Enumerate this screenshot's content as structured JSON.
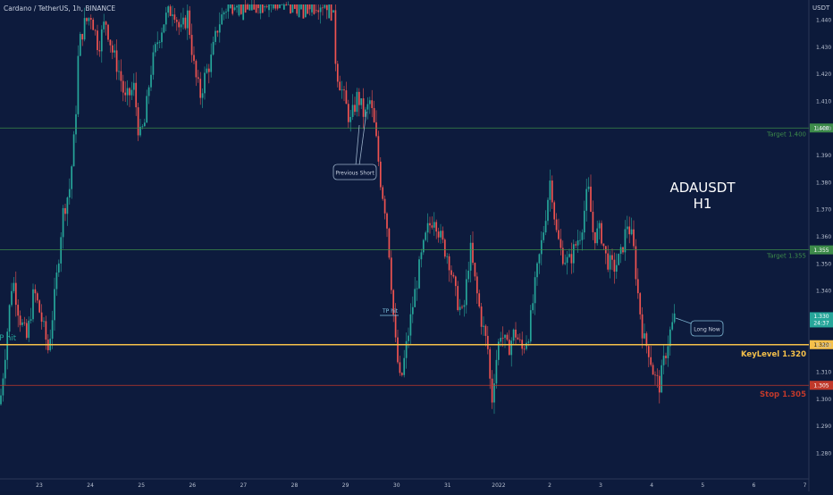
{
  "header": {
    "title": "Cardano / TetherUS, 1h, BINANCE",
    "axis_unit": "USDT"
  },
  "colors": {
    "background": "#0c1a3a",
    "up": "#26a69a",
    "down": "#ef5350",
    "target_line": "#3d8b4a",
    "key_level": "#f5c04a",
    "stop_line": "#c0392b",
    "price_badge": "#26a69a",
    "annotation": "#7fb8d4"
  },
  "chart_data": {
    "type": "candlestick",
    "title": "Cardano / TetherUS, 1h, BINANCE",
    "ylim": [
      1.272,
      1.448
    ],
    "y_ticks": [
      "1.440",
      "1.430",
      "1.420",
      "1.410",
      "1.400",
      "1.390",
      "1.380",
      "1.370",
      "1.360",
      "1.350",
      "1.340",
      "1.330",
      "1.320",
      "1.310",
      "1.300",
      "1.290",
      "1.280"
    ],
    "x_ticks": [
      "23",
      "24",
      "25",
      "26",
      "27",
      "28",
      "29",
      "30",
      "31",
      "2022",
      "2",
      "3",
      "4",
      "5",
      "6",
      "7"
    ],
    "watermark": [
      "ADAUSDT",
      "H1"
    ],
    "last_price": "1.330",
    "countdown": "24:37",
    "levels": [
      {
        "id": "target-1400",
        "label": "Target 1.400",
        "price": 1.4,
        "badge": "1.400",
        "color": "#3d8b4a"
      },
      {
        "id": "target-1355",
        "label": "Target 1.355",
        "price": 1.355,
        "badge": "1.355",
        "color": "#3d8b4a"
      },
      {
        "id": "key-level",
        "label": "KeyLevel 1.320",
        "price": 1.32,
        "badge": "1.320",
        "color": "#f5c04a"
      },
      {
        "id": "stop",
        "label": "Stop 1.305",
        "price": 1.305,
        "badge": "1.305",
        "color": "#c0392b"
      }
    ],
    "annotations": {
      "previous_short": "Previous Short",
      "long_now": "Long Now",
      "tp_hit": "TP hit",
      "tp_hit_left": "TP hit"
    },
    "price_path": [
      [
        0,
        1.298
      ],
      [
        6,
        1.318
      ],
      [
        14,
        1.345
      ],
      [
        22,
        1.33
      ],
      [
        30,
        1.322
      ],
      [
        38,
        1.34
      ],
      [
        46,
        1.33
      ],
      [
        54,
        1.318
      ],
      [
        62,
        1.34
      ],
      [
        70,
        1.368
      ],
      [
        78,
        1.378
      ],
      [
        84,
        1.4
      ],
      [
        88,
        1.43
      ],
      [
        94,
        1.438
      ],
      [
        102,
        1.442
      ],
      [
        110,
        1.43
      ],
      [
        118,
        1.44
      ],
      [
        126,
        1.428
      ],
      [
        134,
        1.42
      ],
      [
        140,
        1.41
      ],
      [
        150,
        1.415
      ],
      [
        156,
        1.396
      ],
      [
        162,
        1.402
      ],
      [
        168,
        1.42
      ],
      [
        176,
        1.432
      ],
      [
        184,
        1.44
      ],
      [
        194,
        1.445
      ],
      [
        202,
        1.435
      ],
      [
        210,
        1.442
      ],
      [
        218,
        1.42
      ],
      [
        224,
        1.412
      ],
      [
        230,
        1.42
      ],
      [
        236,
        1.425
      ],
      [
        244,
        1.438
      ],
      [
        252,
        1.444
      ],
      [
        258,
        1.446
      ],
      [
        262,
        1.448
      ],
      [
        372,
        1.446
      ],
      [
        376,
        1.422
      ],
      [
        384,
        1.412
      ],
      [
        392,
        1.402
      ],
      [
        400,
        1.412
      ],
      [
        408,
        1.404
      ],
      [
        414,
        1.41
      ],
      [
        420,
        1.398
      ],
      [
        426,
        1.38
      ],
      [
        432,
        1.368
      ],
      [
        436,
        1.352
      ],
      [
        442,
        1.322
      ],
      [
        448,
        1.305
      ],
      [
        454,
        1.318
      ],
      [
        462,
        1.335
      ],
      [
        470,
        1.35
      ],
      [
        478,
        1.362
      ],
      [
        486,
        1.368
      ],
      [
        494,
        1.358
      ],
      [
        502,
        1.352
      ],
      [
        510,
        1.338
      ],
      [
        518,
        1.33
      ],
      [
        526,
        1.356
      ],
      [
        532,
        1.342
      ],
      [
        538,
        1.33
      ],
      [
        546,
        1.318
      ],
      [
        550,
        1.298
      ],
      [
        554,
        1.312
      ],
      [
        560,
        1.325
      ],
      [
        568,
        1.318
      ],
      [
        576,
        1.325
      ],
      [
        584,
        1.318
      ],
      [
        592,
        1.325
      ],
      [
        600,
        1.345
      ],
      [
        608,
        1.362
      ],
      [
        616,
        1.382
      ],
      [
        622,
        1.362
      ],
      [
        628,
        1.354
      ],
      [
        636,
        1.35
      ],
      [
        642,
        1.355
      ],
      [
        650,
        1.362
      ],
      [
        658,
        1.378
      ],
      [
        664,
        1.36
      ],
      [
        672,
        1.362
      ],
      [
        678,
        1.352
      ],
      [
        686,
        1.348
      ],
      [
        694,
        1.352
      ],
      [
        702,
        1.365
      ],
      [
        708,
        1.358
      ],
      [
        714,
        1.338
      ],
      [
        720,
        1.322
      ],
      [
        726,
        1.318
      ],
      [
        732,
        1.308
      ],
      [
        738,
        1.305
      ],
      [
        744,
        1.316
      ],
      [
        750,
        1.325
      ],
      [
        756,
        1.331
      ]
    ]
  }
}
